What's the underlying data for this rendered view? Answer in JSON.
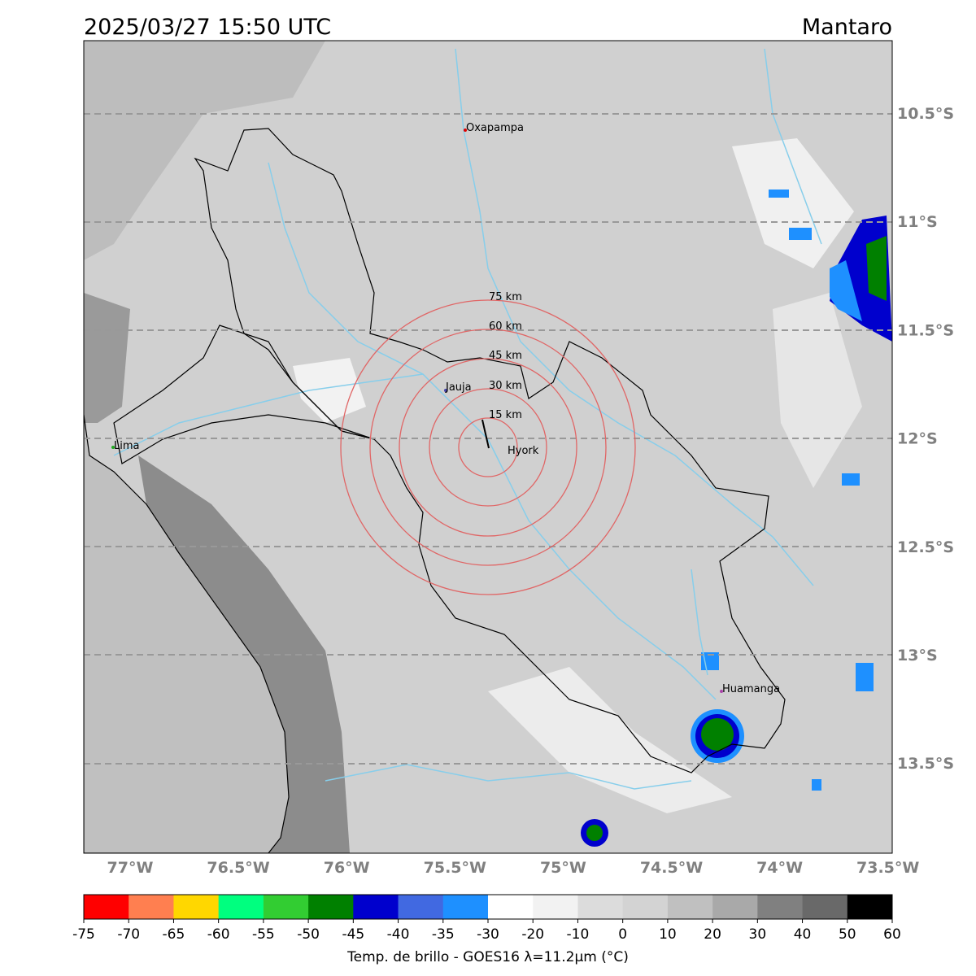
{
  "header": {
    "datetime": "2025/03/27 15:50 UTC",
    "region": "Mantaro"
  },
  "map": {
    "lon_labels": [
      "77°W",
      "76.5°W",
      "76°W",
      "75.5°W",
      "75°W",
      "74.5°W",
      "74°W",
      "73.5°W"
    ],
    "lat_labels": [
      "10.5°S",
      "11°S",
      "11.5°S",
      "12°S",
      "12.5°S",
      "13°S",
      "13.5°S"
    ],
    "cities": [
      "Oxapampa",
      "Jauja",
      "Hyork",
      "Lima",
      "Huamanga"
    ],
    "rings": [
      "15 km",
      "30 km",
      "45 km",
      "60 km",
      "75 km"
    ]
  },
  "colorbar": {
    "ticks": [
      -75,
      -70,
      -65,
      -60,
      -55,
      -50,
      -45,
      -40,
      -35,
      -30,
      -20,
      -10,
      0,
      10,
      20,
      30,
      40,
      50,
      60
    ],
    "colors": [
      "#ff0000",
      "#ff7f50",
      "#ffd700",
      "#00ff7f",
      "#32cd32",
      "#008000",
      "#0000cd",
      "#4169e1",
      "#1e90ff",
      "#ffffff",
      "#f2f2f2",
      "#dcdcdc",
      "#d3d3d3",
      "#c0c0c0",
      "#a9a9a9",
      "#808080",
      "#696969",
      "#000000"
    ],
    "label": "Temp. de brillo - GOES16 λ=11.2μm (°C)"
  }
}
